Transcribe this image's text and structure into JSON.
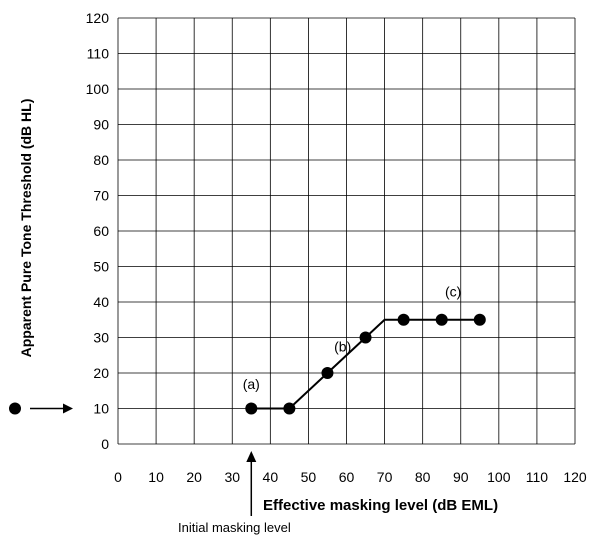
{
  "chart_data": {
    "type": "line",
    "title": "",
    "xlabel": "Effective masking level (dB EML)",
    "ylabel": "Apparent Pure Tone Threshold (dB HL)",
    "xlim": [
      0,
      120
    ],
    "ylim": [
      0,
      120
    ],
    "x_ticks": [
      "0",
      "10",
      "20",
      "30",
      "40",
      "50",
      "60",
      "70",
      "80",
      "90",
      "100",
      "110",
      "120"
    ],
    "y_ticks": [
      "0",
      "10",
      "20",
      "30",
      "40",
      "50",
      "60",
      "70",
      "80",
      "90",
      "100",
      "110",
      "120"
    ],
    "grid": true,
    "legend": "none",
    "line_color": "#000000",
    "line_points": [
      {
        "x": 35,
        "y": 10
      },
      {
        "x": 45,
        "y": 10
      },
      {
        "x": 55,
        "y": 20
      },
      {
        "x": 65,
        "y": 30
      },
      {
        "x": 70,
        "y": 35
      },
      {
        "x": 75,
        "y": 35
      },
      {
        "x": 85,
        "y": 35
      },
      {
        "x": 95,
        "y": 35
      }
    ],
    "markers": [
      {
        "x": 35,
        "y": 10
      },
      {
        "x": 45,
        "y": 10
      },
      {
        "x": 55,
        "y": 20
      },
      {
        "x": 65,
        "y": 30
      },
      {
        "x": 75,
        "y": 35
      },
      {
        "x": 85,
        "y": 35
      },
      {
        "x": 95,
        "y": 35
      }
    ],
    "annotations": [
      {
        "text": "(a)",
        "x": 35,
        "y": 15.5
      },
      {
        "text": "(b)",
        "x": 59,
        "y": 26
      },
      {
        "text": "(c)",
        "x": 88,
        "y": 41.5
      }
    ],
    "unmasked_threshold": {
      "y": 10
    },
    "initial_masking": {
      "x": 35,
      "label": "Initial masking level"
    }
  }
}
